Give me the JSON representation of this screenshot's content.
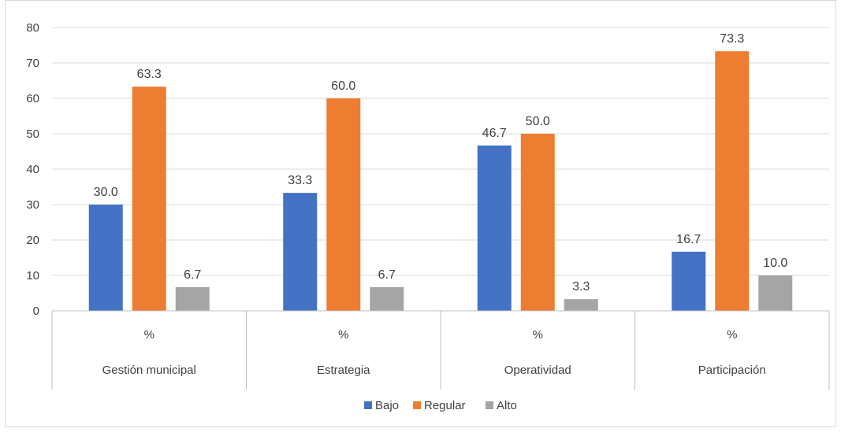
{
  "chart_data": {
    "type": "bar",
    "ylim": [
      0,
      80
    ],
    "yticks": [
      0,
      10,
      20,
      30,
      40,
      50,
      60,
      70,
      80
    ],
    "grid": true,
    "legend_position": "bottom",
    "sublabel": "%",
    "categories": [
      "Gestión municipal",
      "Estrategia",
      "Operatividad",
      "Participación"
    ],
    "series": [
      {
        "name": "Bajo",
        "color": "#4472C4",
        "values": [
          30.0,
          33.3,
          46.7,
          16.7
        ],
        "labels": [
          "30.0",
          "33.3",
          "46.7",
          "16.7"
        ]
      },
      {
        "name": "Regular",
        "color": "#ED7D31",
        "values": [
          63.3,
          60.0,
          50.0,
          73.3
        ],
        "labels": [
          "63.3",
          "60.0",
          "50.0",
          "73.3"
        ]
      },
      {
        "name": "Alto",
        "color": "#A5A5A5",
        "values": [
          6.7,
          6.7,
          3.3,
          10.0
        ],
        "labels": [
          "6.7",
          "6.7",
          "3.3",
          "10.0"
        ]
      }
    ]
  }
}
